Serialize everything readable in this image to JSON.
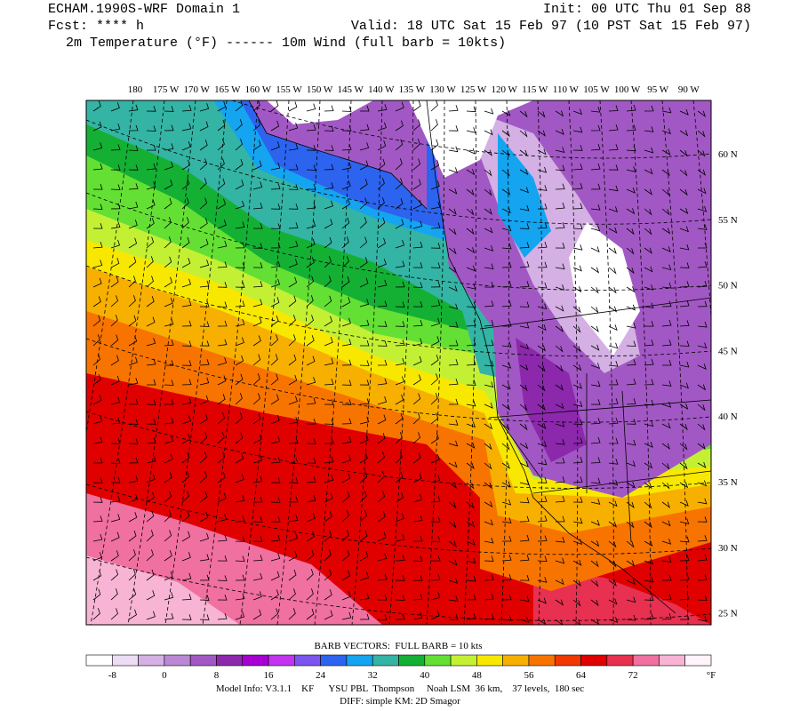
{
  "header": {
    "title": "ECHAM.1990S-WRF Domain 1",
    "init": "Init: 00 UTC Thu 01 Sep 88",
    "forecast": "Fcst: **** h",
    "valid": "Valid: 18 UTC Sat 15 Feb 97 (10 PST Sat 15 Feb 97)",
    "fields": "2m Temperature (°F) ------ 10m Wind (full barb = 10kts)"
  },
  "map": {
    "longitude_labels": [
      "180",
      "175 W",
      "170 W",
      "165 W",
      "160 W",
      "155 W",
      "150 W",
      "145 W",
      "140 W",
      "135 W",
      "130 W",
      "125 W",
      "120 W",
      "115 W",
      "110 W",
      "105 W",
      "100 W",
      "95 W",
      "90 W"
    ],
    "latitude_labels": [
      "60 N",
      "55 N",
      "50 N",
      "45 N",
      "40 N",
      "35 N",
      "30 N",
      "25 N"
    ]
  },
  "legend": {
    "title": "BARB VECTORS:  FULL BARB = 10 kts",
    "labels": [
      -8,
      0,
      8,
      16,
      24,
      32,
      40,
      48,
      56,
      64,
      72
    ],
    "unit": "°F",
    "colors": [
      "#ffffff",
      "#ecdcf4",
      "#d4b0e4",
      "#bc88d4",
      "#a258c4",
      "#8c28ac",
      "#a600d2",
      "#c234f0",
      "#7c54f0",
      "#2c64f0",
      "#14a4f0",
      "#34b4a4",
      "#14b034",
      "#64e034",
      "#c4f034",
      "#f8e800",
      "#f8b000",
      "#f87400",
      "#f03800",
      "#e00000",
      "#e83050",
      "#f070a0",
      "#f8b4d4",
      "#fff4fa"
    ]
  },
  "footer": {
    "model_info": "Model Info: V3.1.1    KF      YSU PBL  Thompson     Noah LSM  36 km,    37 levels,  180 sec",
    "diff": "DIFF: simple KM: 2D Smagor"
  }
}
